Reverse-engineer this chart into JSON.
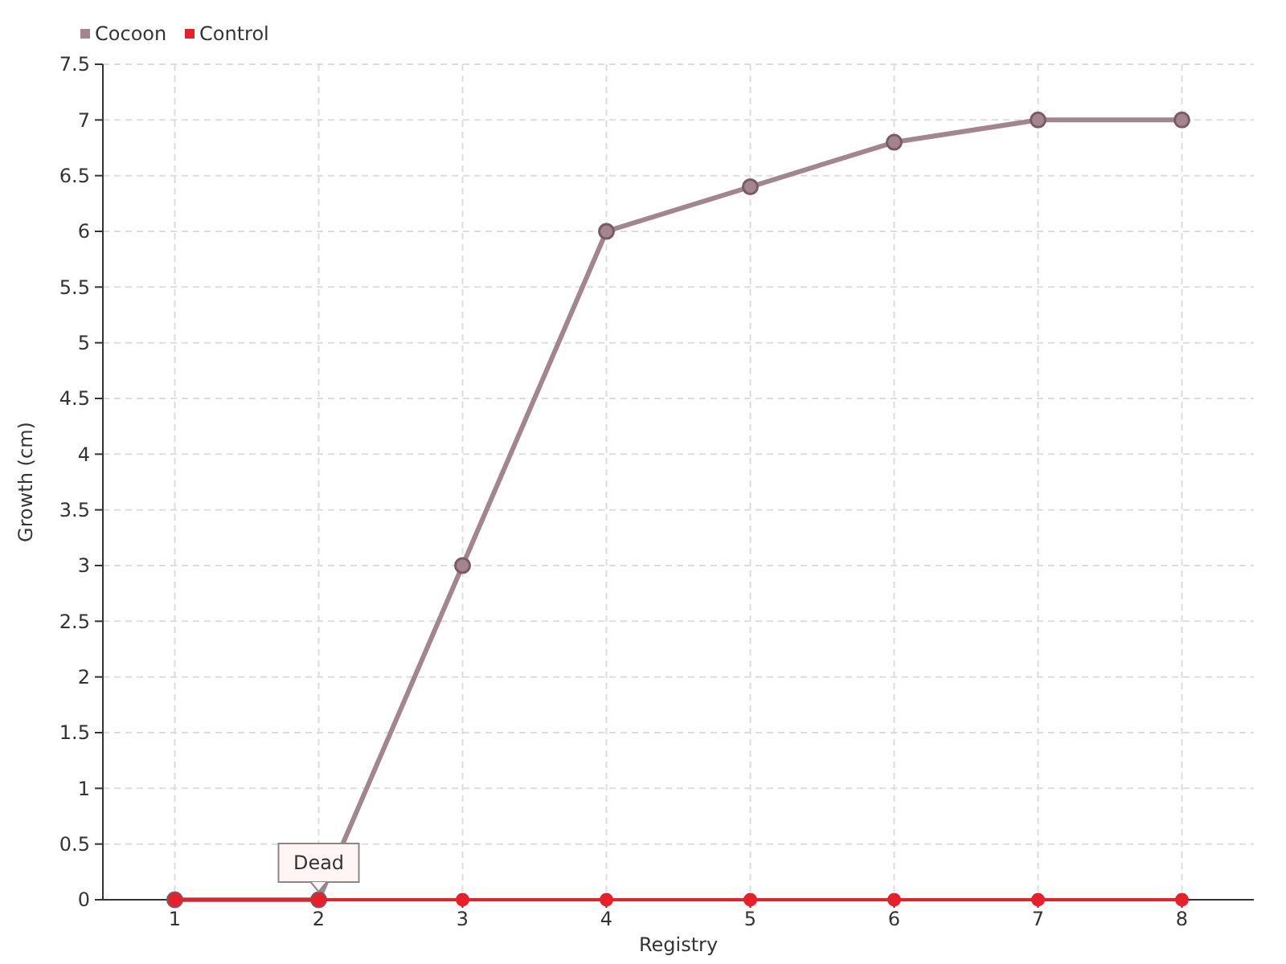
{
  "chart_data": {
    "type": "line",
    "xlabel": "Registry",
    "ylabel": "Growth (cm)",
    "categories": [
      "1",
      "2",
      "3",
      "4",
      "5",
      "6",
      "7",
      "8"
    ],
    "series": [
      {
        "name": "Cocoon",
        "color": "#a38590",
        "values": [
          0,
          0,
          3,
          6,
          6.4,
          6.8,
          7,
          7
        ]
      },
      {
        "name": "Control",
        "color": "#e8202a",
        "values": [
          0,
          0,
          0,
          0,
          0,
          0,
          0,
          0
        ]
      }
    ],
    "ylim": [
      0,
      7.5
    ],
    "yticks": [
      0,
      0.5,
      1,
      1.5,
      2,
      2.5,
      3,
      3.5,
      4,
      4.5,
      5,
      5.5,
      6,
      6.5,
      7,
      7.5
    ],
    "annotations": [
      {
        "text": "Dead",
        "x": "2",
        "y": 0
      }
    ],
    "grid": true,
    "legend": "top left",
    "marker": "circle",
    "line_style": "solid"
  }
}
